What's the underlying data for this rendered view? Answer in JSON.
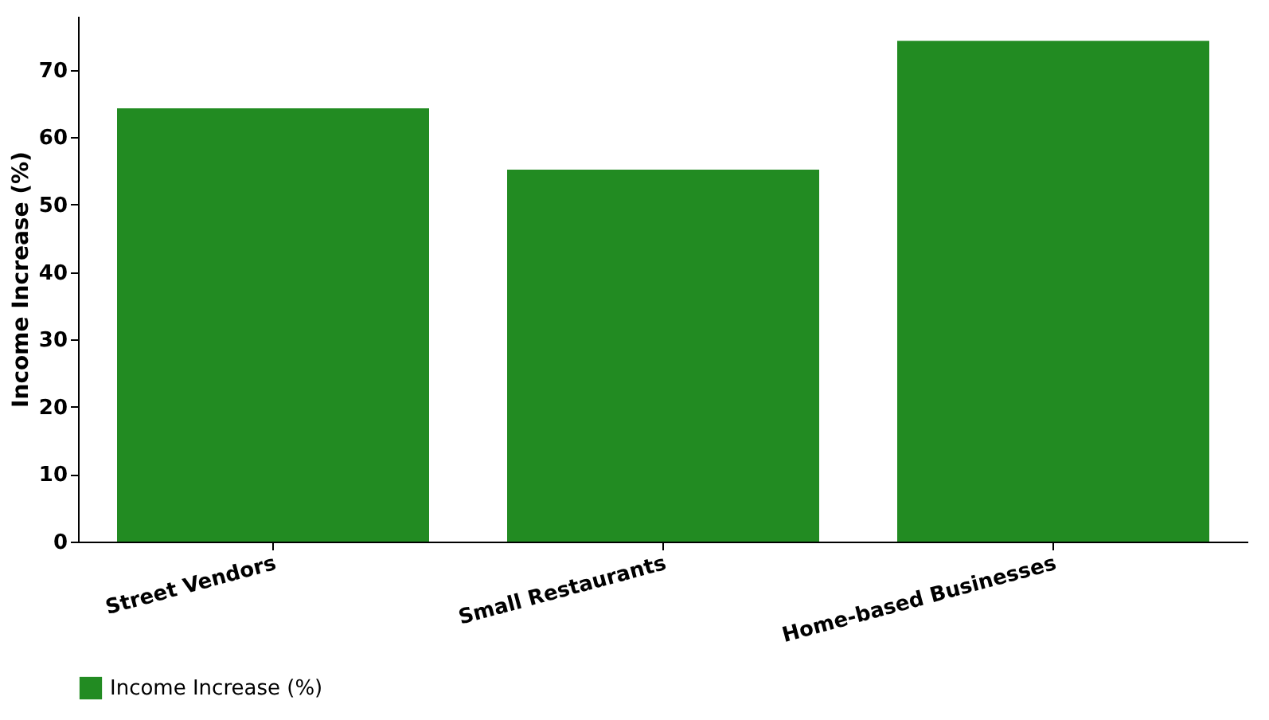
{
  "chart_data": {
    "type": "bar",
    "categories": [
      "Street Vendors",
      "Small Restaurants",
      "Home-based Businesses"
    ],
    "series": [
      {
        "name": "Income Increase (%)",
        "color": "#228b22",
        "values": [
          64.3,
          55.2,
          74.3
        ]
      }
    ],
    "ylabel": "Income Increase (%)",
    "ylim": [
      0,
      78
    ],
    "yticks": [
      0,
      10,
      20,
      30,
      40,
      50,
      60,
      70
    ],
    "grid": false,
    "legend": "bottom"
  }
}
